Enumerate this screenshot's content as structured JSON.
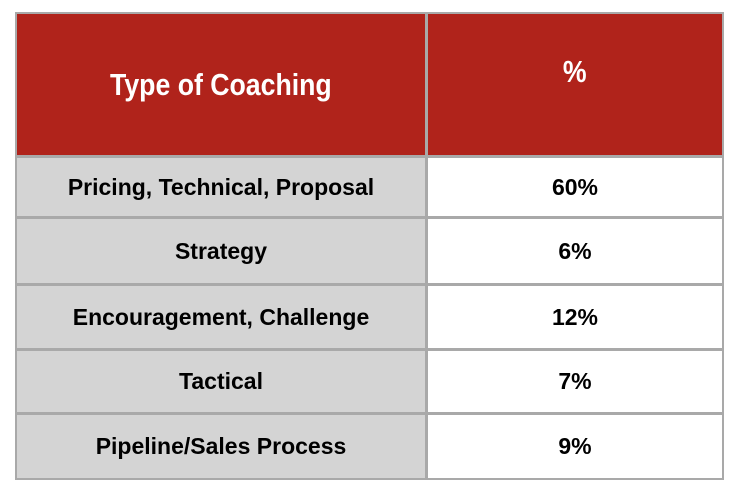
{
  "table": {
    "header": [
      "Type of Coaching",
      "%"
    ],
    "rows": [
      [
        "Pricing, Technical, Proposal",
        "60%"
      ],
      [
        "Strategy",
        "6%"
      ],
      [
        "Encouragement, Challenge",
        "12%"
      ],
      [
        "Tactical",
        "7%"
      ],
      [
        "Pipeline/Sales Process",
        "9%"
      ]
    ]
  }
}
